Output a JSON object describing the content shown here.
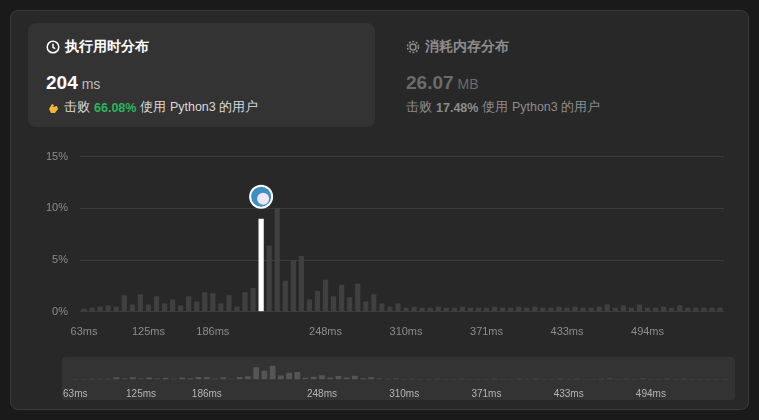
{
  "header": {
    "runtime": {
      "title": "执行用时分布",
      "value": "204",
      "unit": "ms",
      "beat_prefix": "击败",
      "beat": "66.08%",
      "beat_suffix": "使用 Python3 的用户"
    },
    "memory": {
      "title": "消耗内存分布",
      "value": "26.07",
      "unit": "MB",
      "beat_prefix": "击败",
      "beat": "17.48%",
      "beat_suffix": "使用 Python3 的用户"
    }
  },
  "chart_data": {
    "type": "bar",
    "categories": [
      "63ms",
      null,
      null,
      null,
      null,
      null,
      null,
      null,
      "125ms",
      null,
      null,
      null,
      null,
      null,
      null,
      null,
      "186ms",
      null,
      null,
      null,
      null,
      null,
      null,
      null,
      null,
      null,
      null,
      null,
      null,
      null,
      "248ms",
      null,
      null,
      null,
      null,
      null,
      null,
      null,
      null,
      null,
      "310ms",
      null,
      null,
      null,
      null,
      null,
      null,
      null,
      null,
      null,
      "371ms",
      null,
      null,
      null,
      null,
      null,
      null,
      null,
      null,
      null,
      "433ms",
      null,
      null,
      null,
      null,
      null,
      null,
      null,
      null,
      null,
      "494ms",
      null,
      null,
      null,
      null,
      null,
      null,
      null,
      null,
      null
    ],
    "values": [
      0.3,
      0.4,
      0.5,
      0.6,
      0.5,
      1.6,
      0.7,
      1.7,
      0.7,
      1.5,
      0.8,
      1.2,
      0.6,
      1.5,
      1.0,
      1.9,
      1.8,
      0.8,
      1.6,
      0.5,
      1.9,
      2.3,
      9.0,
      6.4,
      10.0,
      3.0,
      5.0,
      5.4,
      1.2,
      2.0,
      3.1,
      1.5,
      2.6,
      1.4,
      2.7,
      1.0,
      1.7,
      0.8,
      0.5,
      0.8,
      0.4,
      0.5,
      0.4,
      0.4,
      0.5,
      0.4,
      0.4,
      0.5,
      0.4,
      0.4,
      0.4,
      0.5,
      0.4,
      0.4,
      0.5,
      0.4,
      0.5,
      0.4,
      0.4,
      0.5,
      0.4,
      0.5,
      0.4,
      0.4,
      0.5,
      0.7,
      0.4,
      0.6,
      0.4,
      0.7,
      0.4,
      0.4,
      0.5,
      0.4,
      0.6,
      0.4,
      0.4,
      0.4,
      0.4,
      0.4
    ],
    "colors": [
      "#404040",
      "#404040",
      "#404040",
      "#404040",
      "#404040",
      "#404040",
      "#404040",
      "#404040",
      "#404040",
      "#404040",
      "#404040",
      "#404040",
      "#404040",
      "#404040",
      "#404040",
      "#404040",
      "#404040",
      "#404040",
      "#404040",
      "#404040",
      "#404040",
      "#404040",
      "#ffffff",
      "#404040",
      "#404040",
      "#404040",
      "#404040",
      "#404040",
      "#404040",
      "#404040",
      "#404040",
      "#404040",
      "#404040",
      "#404040",
      "#404040",
      "#404040",
      "#404040",
      "#404040",
      "#404040",
      "#404040",
      "#404040",
      "#404040",
      "#404040",
      "#404040",
      "#404040",
      "#404040",
      "#404040",
      "#404040",
      "#404040",
      "#404040",
      "#404040",
      "#404040",
      "#404040",
      "#404040",
      "#404040",
      "#404040",
      "#404040",
      "#404040",
      "#404040",
      "#404040",
      "#404040",
      "#404040",
      "#404040",
      "#404040",
      "#404040",
      "#404040",
      "#404040",
      "#404040",
      "#404040",
      "#404040",
      "#404040",
      "#404040",
      "#404040",
      "#404040",
      "#404040",
      "#404040",
      "#404040",
      "#404040",
      "#404040",
      "#404040"
    ],
    "ylim": [
      0,
      15
    ],
    "yticks": [
      {
        "value": 0,
        "label": "0%"
      },
      {
        "value": 5,
        "label": "5%"
      },
      {
        "value": 10,
        "label": "10%"
      },
      {
        "value": 15,
        "label": "15%"
      }
    ],
    "grid": true
  }
}
